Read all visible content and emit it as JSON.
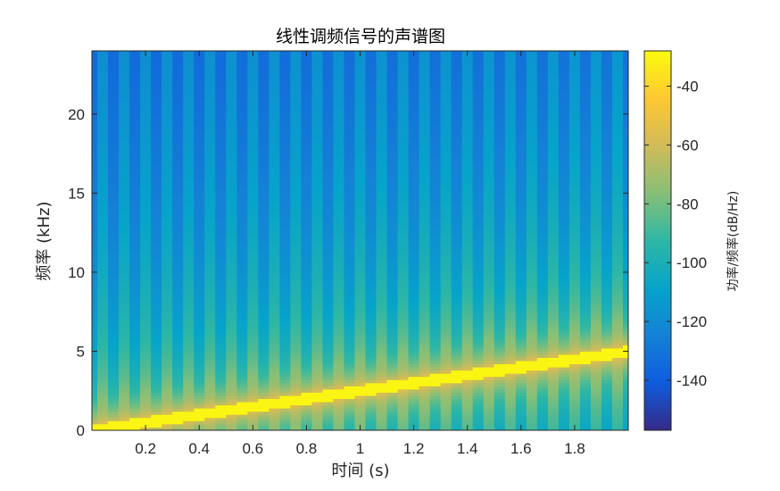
{
  "chart_data": {
    "type": "heatmap",
    "title": "线性调频信号的声谱图",
    "xlabel": "时间 (s)",
    "ylabel": "频率 (kHz)",
    "colorbar_label": "功率/频率(dB/Hz)",
    "xlim": [
      0,
      2
    ],
    "ylim": [
      0,
      24
    ],
    "clim": [
      -157,
      -28
    ],
    "x_ticks": [
      0.2,
      0.4,
      0.6,
      0.8,
      1,
      1.2,
      1.4,
      1.6,
      1.8
    ],
    "x_tick_labels": [
      "0.2",
      "0.4",
      "0.6",
      "0.8",
      "1",
      "1.2",
      "1.4",
      "1.6",
      "1.8"
    ],
    "y_ticks": [
      0,
      5,
      10,
      15,
      20
    ],
    "y_tick_labels": [
      "0",
      "5",
      "10",
      "15",
      "20"
    ],
    "colorbar_ticks": [
      -40,
      -60,
      -80,
      -100,
      -120,
      -140
    ],
    "colorbar_tick_labels": [
      "-40",
      "-60",
      "-80",
      "-100",
      "-120",
      "-140"
    ],
    "colormap": "parula",
    "colormap_stops": [
      "#352a87",
      "#0f5cdd",
      "#1481d6",
      "#06a4ca",
      "#2eb7a4",
      "#87bf77",
      "#d1bb59",
      "#fec832",
      "#f9fb0e"
    ],
    "chirp": {
      "start_frequency_khz": 0,
      "end_frequency_khz": 5,
      "start_time_s": 0,
      "end_time_s": 2,
      "peak_power_db": -30,
      "noise_floor_db": -150
    },
    "grid": false
  }
}
